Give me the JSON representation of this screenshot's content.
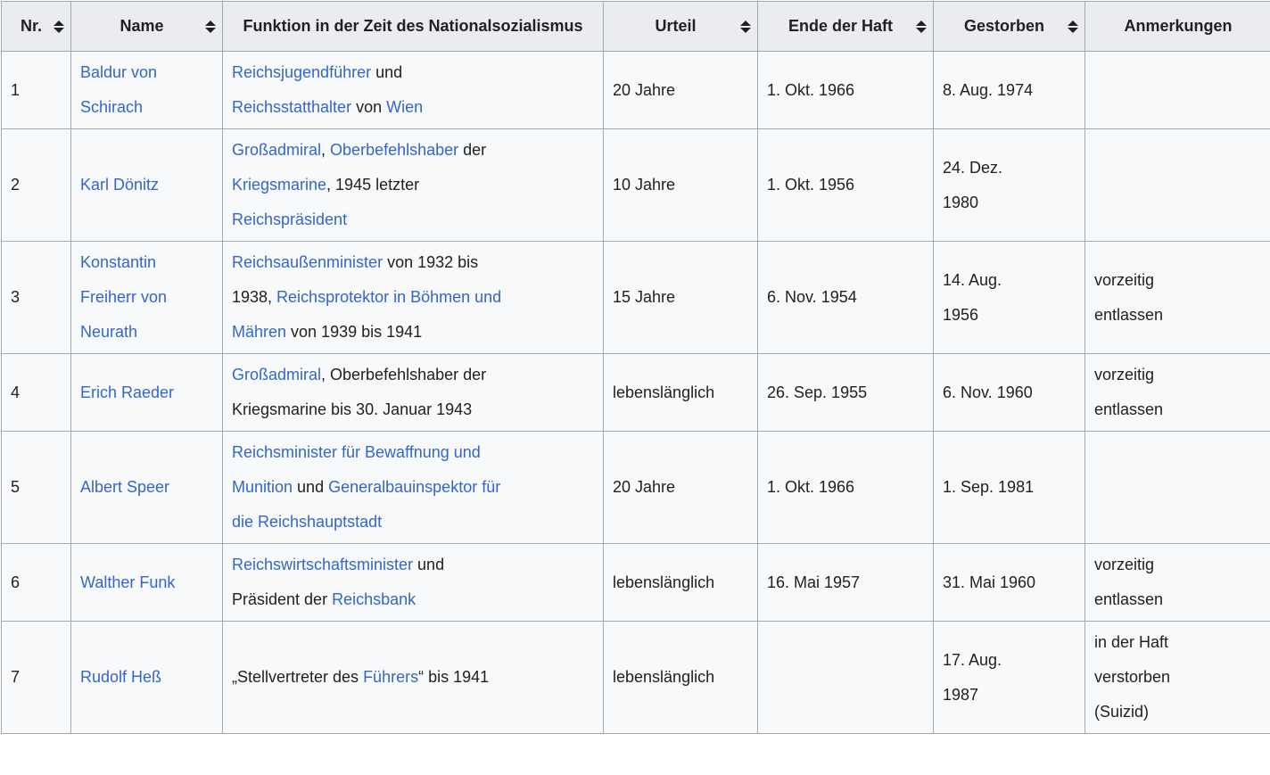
{
  "colors": {
    "link": "#3366cc",
    "text": "#202122",
    "header_bg": "#eaecf0",
    "cell_bg": "#f8f9fa",
    "border": "#a2a9b1"
  },
  "table": {
    "columns": [
      {
        "key": "nr",
        "label": "Nr.",
        "sortable": true
      },
      {
        "key": "name",
        "label": "Name",
        "sortable": true
      },
      {
        "key": "funktion",
        "label": "Funktion in der Zeit des Nationalsozialismus",
        "sortable": false
      },
      {
        "key": "urteil",
        "label": "Urteil",
        "sortable": true
      },
      {
        "key": "ende",
        "label": "Ende der Haft",
        "sortable": true
      },
      {
        "key": "gestorben",
        "label": "Gestorben",
        "sortable": true
      },
      {
        "key": "anmerkungen",
        "label": "Anmerkungen",
        "sortable": false
      }
    ],
    "sort_icon": "sort-both-icon",
    "rows": [
      {
        "nr": "1",
        "name": "Baldur von\nSchirach",
        "funktion": [
          {
            "text": "Reichsjugendführer",
            "link": true
          },
          {
            "text": " und\n",
            "link": false
          },
          {
            "text": "Reichsstatthalter",
            "link": true
          },
          {
            "text": " von ",
            "link": false
          },
          {
            "text": "Wien",
            "link": true
          }
        ],
        "urteil": "20 Jahre",
        "ende": "1. Okt. 1966",
        "gestorben": "8. Aug. 1974",
        "anmerkungen": ""
      },
      {
        "nr": "2",
        "name": "Karl Dönitz",
        "funktion": [
          {
            "text": "Großadmiral",
            "link": true
          },
          {
            "text": ", ",
            "link": false
          },
          {
            "text": "Oberbefehlshaber",
            "link": true
          },
          {
            "text": " der\n",
            "link": false
          },
          {
            "text": "Kriegsmarine",
            "link": true
          },
          {
            "text": ", 1945 letzter\n",
            "link": false
          },
          {
            "text": "Reichspräsident",
            "link": true
          }
        ],
        "urteil": "10 Jahre",
        "ende": "1. Okt. 1956",
        "gestorben": "24. Dez.\n1980",
        "anmerkungen": ""
      },
      {
        "nr": "3",
        "name": "Konstantin\nFreiherr von\nNeurath",
        "funktion": [
          {
            "text": "Reichsaußenminister",
            "link": true
          },
          {
            "text": " von 1932 bis\n1938, ",
            "link": false
          },
          {
            "text": "Reichsprotektor in Böhmen und\nMähren",
            "link": true
          },
          {
            "text": " von 1939 bis 1941",
            "link": false
          }
        ],
        "urteil": "15 Jahre",
        "ende": "6. Nov. 1954",
        "gestorben": "14. Aug.\n1956",
        "anmerkungen": "vorzeitig\nentlassen"
      },
      {
        "nr": "4",
        "name": "Erich Raeder",
        "funktion": [
          {
            "text": "Großadmiral",
            "link": true
          },
          {
            "text": ", Oberbefehlshaber der\nKriegsmarine bis 30. Januar 1943",
            "link": false
          }
        ],
        "urteil": "lebenslänglich",
        "ende": "26. Sep. 1955",
        "gestorben": "6. Nov. 1960",
        "anmerkungen": "vorzeitig\nentlassen"
      },
      {
        "nr": "5",
        "name": "Albert Speer",
        "funktion": [
          {
            "text": "Reichsminister für Bewaffnung und\nMunition",
            "link": true
          },
          {
            "text": " und ",
            "link": false
          },
          {
            "text": "Generalbauinspektor für\ndie Reichshauptstadt",
            "link": true
          }
        ],
        "urteil": "20 Jahre",
        "ende": "1. Okt. 1966",
        "gestorben": "1. Sep. 1981",
        "anmerkungen": ""
      },
      {
        "nr": "6",
        "name": "Walther Funk",
        "funktion": [
          {
            "text": "Reichswirtschaftsminister",
            "link": true
          },
          {
            "text": " und\nPräsident der ",
            "link": false
          },
          {
            "text": "Reichsbank",
            "link": true
          }
        ],
        "urteil": "lebenslänglich",
        "ende": "16. Mai 1957",
        "gestorben": "31. Mai 1960",
        "anmerkungen": "vorzeitig\nentlassen"
      },
      {
        "nr": "7",
        "name": "Rudolf Heß",
        "funktion": [
          {
            "text": "„Stellvertreter des ",
            "link": false
          },
          {
            "text": "Führers",
            "link": true
          },
          {
            "text": "“ bis 1941",
            "link": false
          }
        ],
        "urteil": "lebenslänglich",
        "ende": "",
        "gestorben": "17. Aug.\n1987",
        "anmerkungen": "in der Haft\nverstorben\n(Suizid)"
      }
    ]
  }
}
